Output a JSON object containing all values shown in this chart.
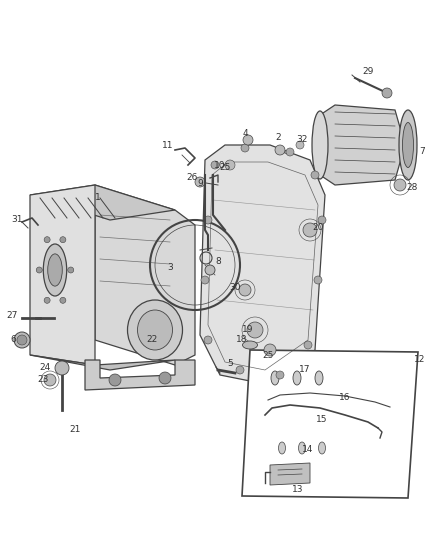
{
  "bg_color": "#ffffff",
  "fig_width": 4.38,
  "fig_height": 5.33,
  "dpi": 100,
  "line_color": "#444444",
  "label_color": "#333333",
  "label_fontsize": 6.5,
  "part_fill": "#e8e8e8",
  "part_fill2": "#d4d4d4",
  "part_stroke": "#555555"
}
